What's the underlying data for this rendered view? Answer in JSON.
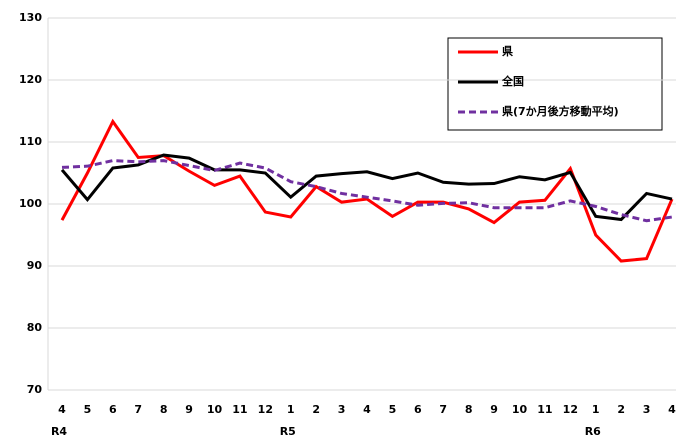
{
  "chart_data": {
    "type": "line",
    "categories": [
      "4",
      "5",
      "6",
      "7",
      "8",
      "9",
      "10",
      "11",
      "12",
      "1",
      "2",
      "3",
      "4",
      "5",
      "6",
      "7",
      "8",
      "9",
      "10",
      "11",
      "12",
      "1",
      "2",
      "3",
      "4"
    ],
    "year_labels": [
      "R4",
      null,
      null,
      null,
      null,
      null,
      null,
      null,
      null,
      "R5",
      null,
      null,
      null,
      null,
      null,
      null,
      null,
      null,
      null,
      null,
      null,
      "R6",
      null,
      null,
      null
    ],
    "series": [
      {
        "name": "県",
        "color": "#ff0000",
        "dashed": false,
        "values": [
          97.4,
          105,
          113.3,
          107.5,
          107.8,
          105.3,
          103,
          104.5,
          98.7,
          97.9,
          102.8,
          100.3,
          100.8,
          98,
          100.3,
          100.3,
          99.2,
          97,
          100.3,
          100.6,
          105.7,
          95,
          90.8,
          91.2,
          100.8
        ]
      },
      {
        "name": "全国",
        "color": "#000000",
        "dashed": false,
        "values": [
          105.5,
          100.7,
          105.8,
          106.3,
          107.9,
          107.4,
          105.5,
          105.5,
          105,
          101.1,
          104.5,
          104.9,
          105.2,
          104.1,
          105,
          103.5,
          103.2,
          103.3,
          104.4,
          103.9,
          105.1,
          98,
          97.5,
          101.7,
          100.8
        ]
      },
      {
        "name": "県(7か月後方移動平均)",
        "color": "#7030a0",
        "dashed": true,
        "values": [
          105.9,
          106.1,
          107,
          106.8,
          107,
          106.2,
          105.4,
          106.6,
          105.8,
          103.6,
          102.8,
          101.7,
          101.1,
          100.5,
          99.8,
          100.1,
          100.2,
          99.4,
          99.4,
          99.4,
          100.5,
          99.6,
          98.3,
          97.3,
          97.9
        ]
      }
    ],
    "ylim": [
      70,
      130
    ],
    "yticks": [
      70,
      80,
      90,
      100,
      110,
      120,
      130
    ],
    "grid": true,
    "legend": "top-right"
  }
}
